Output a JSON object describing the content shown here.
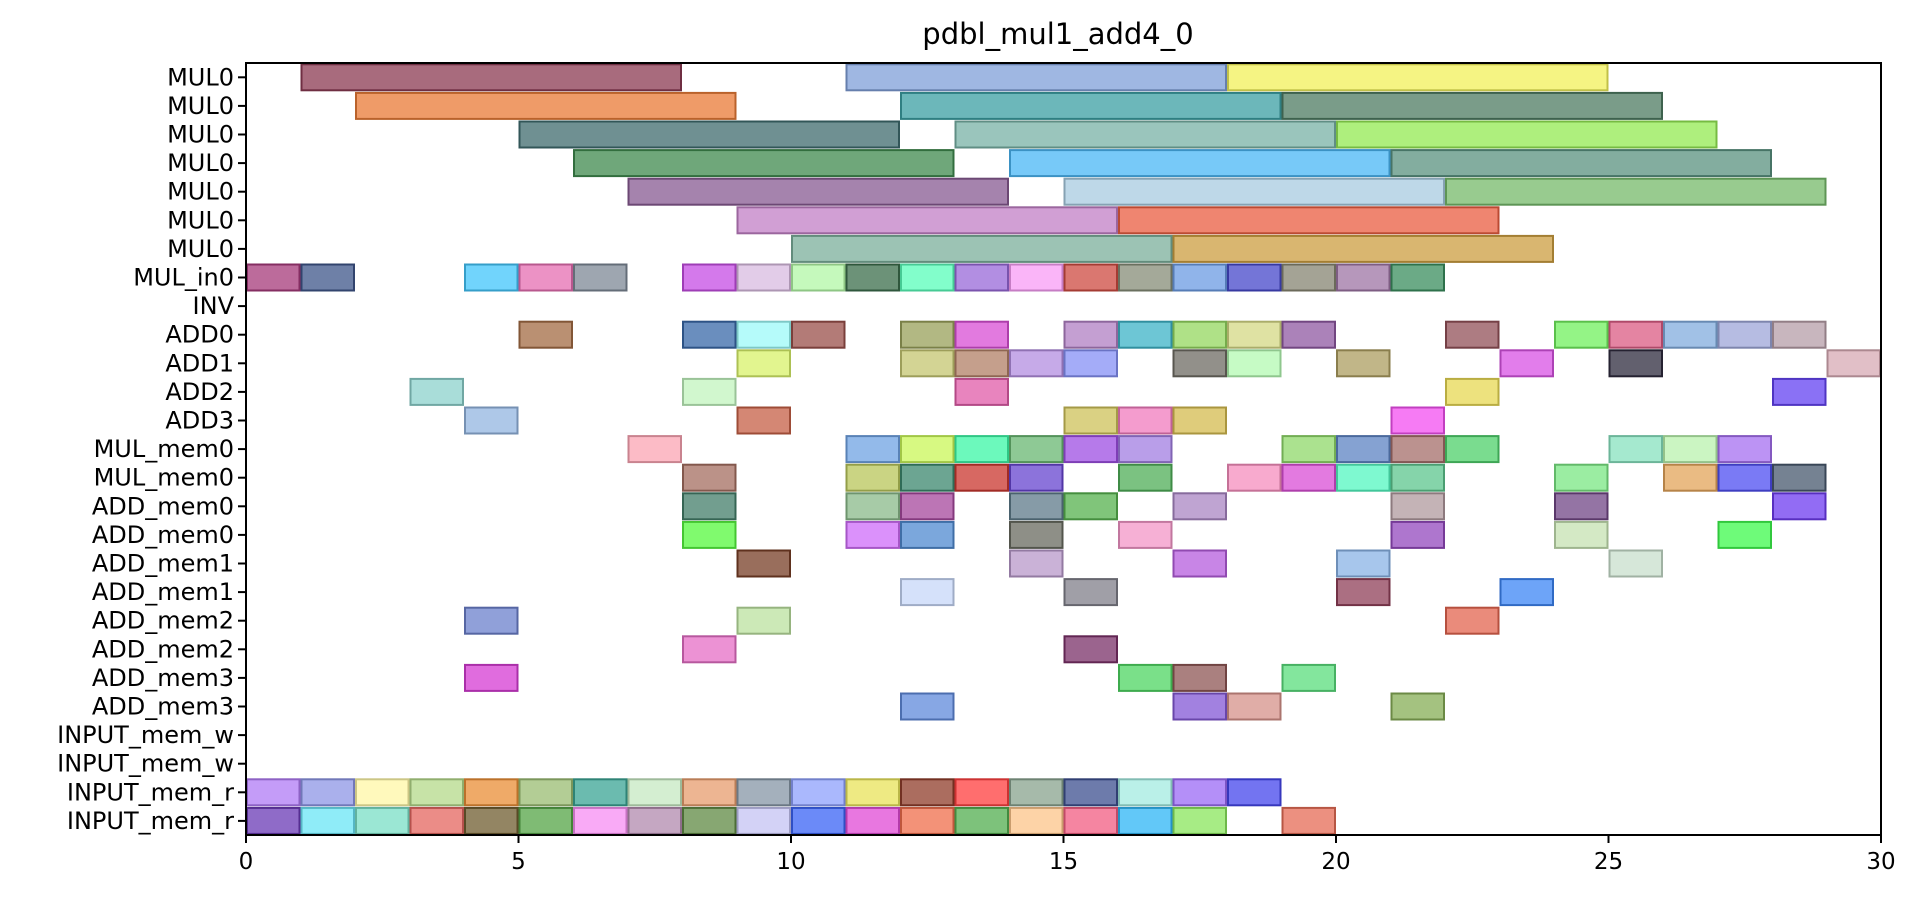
{
  "chart_data": {
    "type": "gantt",
    "title": "pdbl_mul1_add4_0",
    "xlim": [
      0,
      30
    ],
    "xticks": [
      0,
      5,
      10,
      15,
      20,
      25,
      30
    ],
    "grid": false,
    "rows": [
      "MUL0",
      "MUL0",
      "MUL0",
      "MUL0",
      "MUL0",
      "MUL0",
      "MUL0",
      "MUL_in0",
      "INV",
      "ADD0",
      "ADD1",
      "ADD2",
      "ADD3",
      "MUL_mem0",
      "MUL_mem0",
      "ADD_mem0",
      "ADD_mem0",
      "ADD_mem1",
      "ADD_mem1",
      "ADD_mem2",
      "ADD_mem2",
      "ADD_mem3",
      "ADD_mem3",
      "INPUT_mem_w",
      "INPUT_mem_w",
      "INPUT_mem_r",
      "INPUT_mem_r"
    ],
    "tasks": [
      [
        [
          1,
          8,
          "#8b3a52"
        ],
        [
          11,
          18,
          "#7f9fd8"
        ],
        [
          18,
          25,
          "#f1f05a"
        ]
      ],
      [
        [
          2,
          9,
          "#e97a36"
        ],
        [
          12,
          19,
          "#3b9fa3"
        ],
        [
          19,
          26,
          "#4e7b62"
        ]
      ],
      [
        [
          5,
          12,
          "#3f6b6e"
        ],
        [
          13,
          20,
          "#78b1a5"
        ],
        [
          20,
          27,
          "#93ea52"
        ]
      ],
      [
        [
          6,
          13,
          "#3f8a4d"
        ],
        [
          14,
          21,
          "#4ab7f5"
        ],
        [
          21,
          28,
          "#59917f"
        ]
      ],
      [
        [
          7,
          14,
          "#875a91"
        ],
        [
          15,
          22,
          "#a8cbe0"
        ],
        [
          22,
          29,
          "#76ba6a"
        ]
      ],
      [
        [
          9,
          16,
          "#c27fc5"
        ],
        [
          16,
          23,
          "#ea5c40"
        ]
      ],
      [
        [
          10,
          17,
          "#7baf9b"
        ],
        [
          17,
          24,
          "#cc9d40"
        ]
      ],
      [
        [
          0,
          1,
          "#a63a7a"
        ],
        [
          1,
          2,
          "#3e5589"
        ],
        [
          4,
          5,
          "#42c5fb"
        ],
        [
          5,
          6,
          "#e66eb1"
        ],
        [
          6,
          7,
          "#7d8896"
        ],
        [
          8,
          9,
          "#c54ce4"
        ],
        [
          9,
          10,
          "#d8bbe0"
        ],
        [
          10,
          11,
          "#b1f7a5"
        ],
        [
          11,
          12,
          "#3b6d4b"
        ],
        [
          12,
          13,
          "#58fdb9"
        ],
        [
          13,
          14,
          "#9868d8"
        ],
        [
          14,
          15,
          "#f89cf5"
        ],
        [
          15,
          16,
          "#cd4a40"
        ],
        [
          16,
          17,
          "#858c77"
        ],
        [
          17,
          18,
          "#6b9be3"
        ],
        [
          18,
          19,
          "#4547c9"
        ],
        [
          19,
          20,
          "#868471"
        ],
        [
          20,
          21,
          "#9d74a4"
        ],
        [
          21,
          22,
          "#398d5e"
        ]
      ],
      [],
      [
        [
          5,
          6,
          "#a36b43"
        ],
        [
          8,
          9,
          "#3868a8"
        ],
        [
          9,
          10,
          "#9cfaf8"
        ],
        [
          10,
          11,
          "#994f4a"
        ],
        [
          12,
          13,
          "#98a05a"
        ],
        [
          13,
          14,
          "#d84ed4"
        ],
        [
          15,
          16,
          "#b07fc3"
        ],
        [
          16,
          17,
          "#3cb3c7"
        ],
        [
          17,
          18,
          "#94d75f"
        ],
        [
          18,
          19,
          "#d4d884"
        ],
        [
          19,
          20,
          "#8f58a1"
        ],
        [
          22,
          23,
          "#925058"
        ],
        [
          24,
          25,
          "#70f05e"
        ],
        [
          25,
          26,
          "#db5b83"
        ],
        [
          26,
          27,
          "#82acde"
        ],
        [
          27,
          28,
          "#9ea6d8"
        ],
        [
          28,
          29,
          "#b69ea8"
        ]
      ],
      [
        [
          9,
          10,
          "#d8f169"
        ],
        [
          12,
          13,
          "#c4c670"
        ],
        [
          13,
          14,
          "#b27f66"
        ],
        [
          14,
          15,
          "#b38de0"
        ],
        [
          15,
          16,
          "#8590f5"
        ],
        [
          17,
          18,
          "#6e6b63"
        ],
        [
          18,
          19,
          "#b3f9b1"
        ],
        [
          20,
          21,
          "#ac9d60"
        ],
        [
          23,
          24,
          "#d852e4"
        ],
        [
          25,
          26,
          "#2e2b3d"
        ],
        [
          29,
          30,
          "#d7aab4"
        ]
      ],
      [
        [
          3,
          4,
          "#8cd1cc"
        ],
        [
          8,
          9,
          "#c1f4be"
        ],
        [
          13,
          14,
          "#e05ba8"
        ],
        [
          22,
          23,
          "#e7d853"
        ],
        [
          28,
          29,
          "#6342f2"
        ]
      ],
      [
        [
          4,
          5,
          "#93b5e0"
        ],
        [
          9,
          10,
          "#c65f45"
        ],
        [
          15,
          16,
          "#cdc159"
        ],
        [
          16,
          17,
          "#f07bbd"
        ],
        [
          17,
          18,
          "#d4bb4f"
        ],
        [
          21,
          22,
          "#f34ff0"
        ]
      ],
      [
        [
          7,
          8,
          "#fba4b3"
        ],
        [
          11,
          12,
          "#6fa3e3"
        ],
        [
          12,
          13,
          "#c9f758"
        ],
        [
          13,
          14,
          "#3bf7a6"
        ],
        [
          14,
          15,
          "#68b771"
        ],
        [
          15,
          16,
          "#9d4de3"
        ],
        [
          16,
          17,
          "#a17de1"
        ],
        [
          19,
          20,
          "#8fd869"
        ],
        [
          20,
          21,
          "#5c83c3"
        ],
        [
          21,
          22,
          "#a46d69"
        ],
        [
          22,
          23,
          "#4ed06a"
        ],
        [
          25,
          26,
          "#87e2bf"
        ],
        [
          26,
          27,
          "#b9f2ad"
        ],
        [
          27,
          28,
          "#a56ff0"
        ]
      ],
      [
        [
          8,
          9,
          "#a46e60"
        ],
        [
          11,
          12,
          "#b8c65a"
        ],
        [
          12,
          13,
          "#3b876d"
        ],
        [
          13,
          14,
          "#c9362e"
        ],
        [
          14,
          15,
          "#6644cf"
        ],
        [
          16,
          17,
          "#4fae57"
        ],
        [
          18,
          19,
          "#f68dbd"
        ],
        [
          19,
          20,
          "#d94ed6"
        ],
        [
          20,
          21,
          "#53f7c0"
        ],
        [
          21,
          22,
          "#5cc68d"
        ],
        [
          24,
          25,
          "#7ae783"
        ],
        [
          26,
          27,
          "#e3a45a"
        ],
        [
          27,
          28,
          "#4d4ef1"
        ],
        [
          28,
          29,
          "#47586d"
        ]
      ],
      [
        [
          8,
          9,
          "#437e69"
        ],
        [
          11,
          12,
          "#8ab98a"
        ],
        [
          12,
          13,
          "#a5479c"
        ],
        [
          14,
          15,
          "#5d7a8a"
        ],
        [
          15,
          16,
          "#56b14e"
        ],
        [
          17,
          18,
          "#a986c3"
        ],
        [
          21,
          22,
          "#b0999e"
        ],
        [
          24,
          25,
          "#704685"
        ],
        [
          28,
          29,
          "#6e3bf0"
        ]
      ],
      [
        [
          8,
          9,
          "#55f83d"
        ],
        [
          11,
          12,
          "#cf6cf9"
        ],
        [
          12,
          13,
          "#4f8ad0"
        ],
        [
          14,
          15,
          "#686a5f"
        ],
        [
          16,
          17,
          "#f395c7"
        ],
        [
          21,
          22,
          "#9348be"
        ],
        [
          24,
          25,
          "#c6e2b1"
        ],
        [
          27,
          28,
          "#3dfa4c"
        ]
      ],
      [
        [
          9,
          10,
          "#773d25"
        ],
        [
          14,
          15,
          "#b898ca"
        ],
        [
          17,
          18,
          "#b55cdd"
        ],
        [
          20,
          21,
          "#89b3e6"
        ],
        [
          25,
          26,
          "#c8dfcc"
        ]
      ],
      [
        [
          12,
          13,
          "#c7d7f8"
        ],
        [
          15,
          16,
          "#807f89"
        ],
        [
          20,
          21,
          "#8f3f58"
        ],
        [
          23,
          24,
          "#3c85f5"
        ]
      ],
      [
        [
          4,
          5,
          "#6b80cc"
        ],
        [
          9,
          10,
          "#bbe19f"
        ],
        [
          22,
          23,
          "#e3644f"
        ]
      ],
      [
        [
          8,
          9,
          "#e56ec5"
        ],
        [
          15,
          16,
          "#7a3068"
        ]
      ],
      [
        [
          4,
          5,
          "#d53bd3"
        ],
        [
          16,
          17,
          "#4ed662"
        ],
        [
          17,
          18,
          "#8d5554"
        ],
        [
          19,
          20,
          "#59dd7c"
        ]
      ],
      [
        [
          12,
          13,
          "#5f89db"
        ],
        [
          17,
          18,
          "#8357d5"
        ],
        [
          18,
          19,
          "#d6918a"
        ],
        [
          21,
          22,
          "#86ad56"
        ]
      ],
      [],
      [],
      [
        [
          0,
          1,
          "#b07bf5"
        ],
        [
          1,
          2,
          "#8d96e6"
        ],
        [
          2,
          3,
          "#fff7a6"
        ],
        [
          3,
          4,
          "#b4da8a"
        ],
        [
          4,
          5,
          "#ea8d35"
        ],
        [
          5,
          6,
          "#9abc72"
        ],
        [
          6,
          7,
          "#39a494"
        ],
        [
          7,
          8,
          "#c5e8c1"
        ],
        [
          8,
          9,
          "#e79c6d"
        ],
        [
          9,
          10,
          "#8696a5"
        ],
        [
          10,
          11,
          "#8ea0fc"
        ],
        [
          11,
          12,
          "#e8e35a"
        ],
        [
          12,
          13,
          "#8f3c2a"
        ],
        [
          13,
          14,
          "#ff3e3e"
        ],
        [
          14,
          15,
          "#88a38e"
        ],
        [
          15,
          16,
          "#3c4f8f"
        ],
        [
          16,
          17,
          "#a3ebe0"
        ],
        [
          17,
          18,
          "#9b6af5"
        ],
        [
          18,
          19,
          "#4445ec"
        ]
      ],
      [
        [
          0,
          1,
          "#6a3ab5"
        ],
        [
          1,
          2,
          "#6ae5f6"
        ],
        [
          2,
          3,
          "#7adfc6"
        ],
        [
          3,
          4,
          "#e4655f"
        ],
        [
          4,
          5,
          "#6f5c2f"
        ],
        [
          5,
          6,
          "#54a446"
        ],
        [
          6,
          7,
          "#f78ef3"
        ],
        [
          7,
          8,
          "#b28aae"
        ],
        [
          8,
          9,
          "#5f8a43"
        ],
        [
          9,
          10,
          "#c4c3f3"
        ],
        [
          10,
          11,
          "#3963f6"
        ],
        [
          11,
          12,
          "#e04ad6"
        ],
        [
          12,
          13,
          "#ef6d4b"
        ],
        [
          13,
          14,
          "#52ad4f"
        ],
        [
          14,
          15,
          "#fcc48a"
        ],
        [
          15,
          16,
          "#f15c81"
        ],
        [
          16,
          17,
          "#2db6f6"
        ],
        [
          17,
          18,
          "#8ae65c"
        ],
        [
          19,
          20,
          "#e56b55"
        ]
      ]
    ]
  }
}
